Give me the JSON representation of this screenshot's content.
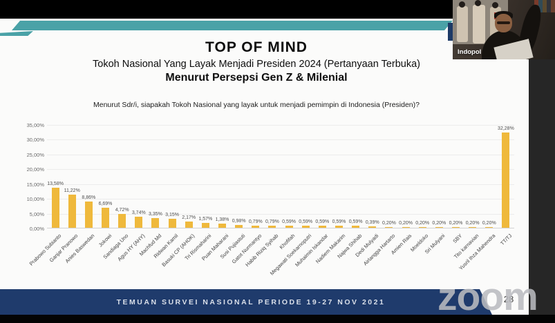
{
  "window": {
    "page_number": "28",
    "watermark": "zoom"
  },
  "webcam": {
    "participant_label": "Indopol"
  },
  "slide": {
    "title": "TOP OF MIND",
    "subtitle": "Tokoh Nasional Yang Layak Menjadi Presiden 2024 (Pertanyaan Terbuka)",
    "subtitle2": "Menurut Persepsi Gen Z & Milenial",
    "question": "Menurut Sdr/i, siapakah Tokoh Nasional yang layak untuk menjadi pemimpin di Indonesia (Presiden)?",
    "footer": "TEMUAN SURVEI NASIONAL PERIODE 19-27 NOV 2021"
  },
  "colors": {
    "bar": "#EFB93C",
    "ribbon_teal": "#4AA2A7",
    "footer_navy": "#1F3B6C",
    "watermark_gray": "#BABBBF"
  },
  "chart_data": {
    "type": "bar",
    "title": "TOP OF MIND - Tokoh Nasional Yang Layak Menjadi Presiden 2024",
    "xlabel": "",
    "ylabel": "",
    "ylim": [
      0,
      35
    ],
    "ytick_step": 5,
    "ytick_labels": [
      "0,00%",
      "5,00%",
      "10,00%",
      "15,00%",
      "20,00%",
      "25,00%",
      "30,00%",
      "35,00%"
    ],
    "grid": true,
    "legend_position": "none",
    "bar_color": "#EFB93C",
    "categories": [
      "Prabowo Subianto",
      "Ganjar Pranowo",
      "Anies Baswedan",
      "Jokowi",
      "Sandiaga Uno",
      "Agus HY (AHY)",
      "Machfud Md",
      "Ridwan Kamil",
      "Basuki CP (AHOK)",
      "Tri Rismaharini",
      "Puan Maharani",
      "Susi Pujiastuti",
      "Gatot Nurmantyo",
      "Habib Riziq Syihab",
      "Khofifah",
      "Megawati Soekarnoputri",
      "Muhaimin Iskandar",
      "Nadiem Makarim",
      "Najwa Shihab",
      "Dedi Mulyadi",
      "Airlangga Hartarto",
      "Amien Rais",
      "Moeldoko",
      "Sri Mulyani",
      "SBY",
      "Tito karnavian",
      "Yusril Ihza Mahendra",
      "TT/TJ"
    ],
    "values": [
      13.58,
      11.22,
      8.86,
      6.69,
      4.72,
      3.74,
      3.35,
      3.15,
      2.17,
      1.57,
      1.38,
      0.98,
      0.79,
      0.79,
      0.59,
      0.59,
      0.59,
      0.59,
      0.59,
      0.39,
      0.2,
      0.2,
      0.2,
      0.2,
      0.2,
      0.2,
      0.2,
      32.28
    ],
    "value_labels": [
      "13,58%",
      "11,22%",
      "8,86%",
      "6,69%",
      "4,72%",
      "3,74%",
      "3,35%",
      "3,15%",
      "2,17%",
      "1,57%",
      "1,38%",
      "0,98%",
      "0,79%",
      "0,79%",
      "0,59%",
      "0,59%",
      "0,59%",
      "0,59%",
      "0,59%",
      "0,39%",
      "0,20%",
      "0,20%",
      "0,20%",
      "0,20%",
      "0,20%",
      "0,20%",
      "0,20%",
      "32,28%"
    ]
  }
}
